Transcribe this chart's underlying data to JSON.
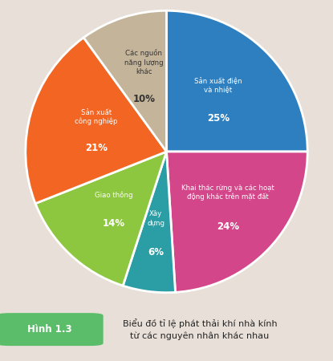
{
  "slices": [
    {
      "label": "Sản xuất điện\nvà nhiệt",
      "pct_label": "25%",
      "value": 25,
      "color": "#2E7FBF",
      "text_color": "white",
      "label_r": 0.55,
      "pct_r": 0.68
    },
    {
      "label": "Khai thác rừng và các hoạt\nđộng khác trên mặt đất",
      "pct_label": "24%",
      "value": 24,
      "color": "#D4468A",
      "text_color": "white",
      "label_r": 0.62,
      "pct_r": 0.72
    },
    {
      "label": "Xây\ndựng",
      "pct_label": "6%",
      "value": 6,
      "color": "#2A9DA5",
      "text_color": "white",
      "label_r": 0.55,
      "pct_r": 0.68
    },
    {
      "label": "Giao thông",
      "pct_label": "14%",
      "value": 14,
      "color": "#8DC63F",
      "text_color": "white",
      "label_r": 0.55,
      "pct_r": 0.7
    },
    {
      "label": "Sản xuất\ncông nghiệp",
      "pct_label": "21%",
      "value": 21,
      "color": "#F26522",
      "text_color": "white",
      "label_r": 0.55,
      "pct_r": 0.7
    },
    {
      "label": "Các nguồn\nnăng lượng\nkhác",
      "pct_label": "10%",
      "value": 10,
      "color": "#C4B49A",
      "text_color": "#333333",
      "label_r": 0.52,
      "pct_r": 0.68
    }
  ],
  "bg_color": "#E8E0D8",
  "caption_box_color": "#5BBD6A",
  "caption_label": "Hình 1.3",
  "caption_text": "Biểu đồ tỉ lệ phát thải khí nhà kính\ntừ các nguyên nhân khác nhau",
  "startangle": 90
}
